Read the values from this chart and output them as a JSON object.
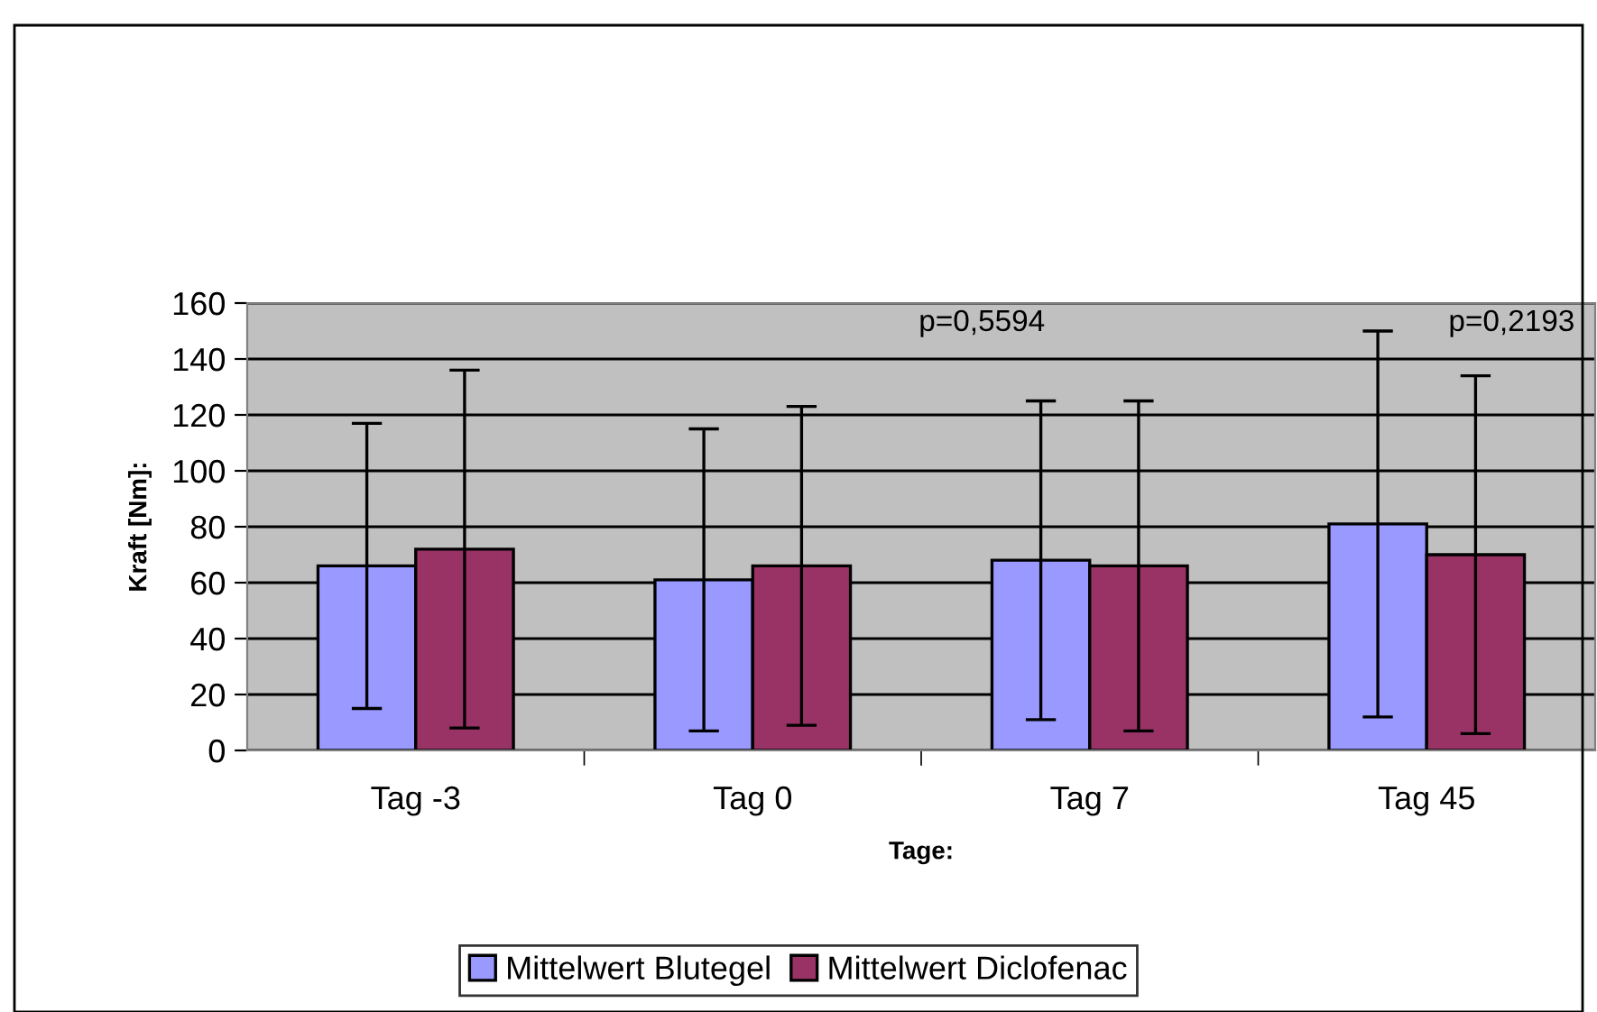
{
  "chart_data": {
    "type": "bar",
    "xlabel": "Tage:",
    "ylabel": "Kraft [Nm]:",
    "categories": [
      "Tag -3",
      "Tag 0",
      "Tag 7",
      "Tag 45"
    ],
    "series": [
      {
        "name": "Mittelwert Blutegel",
        "color": "#9999ff",
        "values": [
          66,
          61,
          68,
          81
        ],
        "errors": [
          51,
          54,
          57,
          69
        ]
      },
      {
        "name": "Mittelwert Diclofenac",
        "color": "#993366",
        "values": [
          72,
          66,
          66,
          70
        ],
        "errors": [
          64,
          57,
          59,
          64
        ]
      }
    ],
    "ylim": [
      0,
      160
    ],
    "yticks": [
      0,
      20,
      40,
      60,
      80,
      100,
      120,
      140,
      160
    ],
    "grid": "y",
    "legend": "bottom",
    "annotations": [
      "p=0,5594",
      "p=0,2193"
    ]
  }
}
